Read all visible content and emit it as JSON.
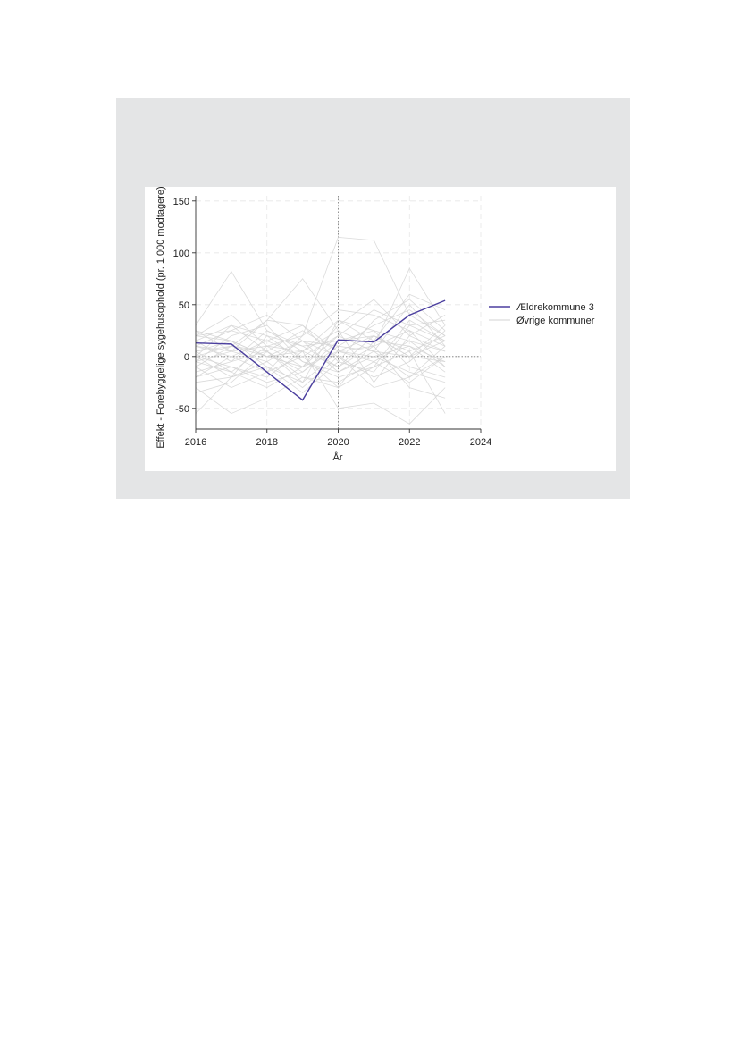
{
  "chart_data": {
    "type": "line",
    "title": "",
    "xlabel": "År",
    "ylabel": "Effekt - Forebyggelige sygehusophold (pr. 1.000 modtagere)",
    "xlim": [
      2016,
      2024
    ],
    "ylim": [
      -70,
      155
    ],
    "x_ticks": [
      2016,
      2018,
      2020,
      2022,
      2024
    ],
    "y_ticks": [
      150,
      100,
      50,
      0,
      -50
    ],
    "grid": true,
    "reference_lines": {
      "x": 2020,
      "y": 0
    },
    "legend_position": "right",
    "x": [
      2016,
      2017,
      2018,
      2019,
      2020,
      2021,
      2022,
      2023
    ],
    "highlight": {
      "name": "Ældrekommune 3",
      "color": "#4b3f9f",
      "values": [
        13,
        12,
        -15,
        -42,
        16,
        14,
        40,
        54
      ]
    },
    "others": {
      "name": "Øvrige kommuner",
      "color": "#d3d3d3",
      "series": [
        [
          30,
          82,
          25,
          5,
          -10,
          20,
          0,
          15
        ],
        [
          5,
          10,
          35,
          75,
          25,
          10,
          85,
          30
        ],
        [
          -5,
          5,
          10,
          20,
          115,
          112,
          40,
          20
        ],
        [
          0,
          -10,
          -20,
          5,
          -50,
          -45,
          -65,
          -30
        ],
        [
          -55,
          -20,
          -10,
          -25,
          5,
          10,
          25,
          -10
        ],
        [
          -30,
          -55,
          -40,
          -20,
          -30,
          -10,
          5,
          -55
        ],
        [
          20,
          15,
          0,
          -10,
          30,
          55,
          20,
          40
        ],
        [
          10,
          25,
          40,
          15,
          0,
          -20,
          -5,
          25
        ],
        [
          -10,
          -30,
          -15,
          0,
          20,
          5,
          -20,
          10
        ],
        [
          25,
          5,
          -5,
          15,
          10,
          30,
          45,
          20
        ],
        [
          15,
          30,
          20,
          -5,
          -15,
          0,
          10,
          -15
        ],
        [
          -20,
          0,
          15,
          30,
          -5,
          -15,
          30,
          35
        ],
        [
          5,
          -15,
          -30,
          -10,
          5,
          20,
          0,
          -5
        ],
        [
          0,
          10,
          5,
          -20,
          -25,
          -5,
          15,
          5
        ],
        [
          -15,
          -5,
          25,
          10,
          15,
          25,
          -10,
          -20
        ],
        [
          20,
          40,
          10,
          5,
          35,
          15,
          60,
          45
        ],
        [
          -25,
          -20,
          -5,
          -30,
          0,
          -30,
          -20,
          0
        ],
        [
          10,
          0,
          -15,
          20,
          45,
          40,
          25,
          10
        ],
        [
          -5,
          20,
          30,
          -5,
          -20,
          -10,
          35,
          15
        ],
        [
          15,
          -5,
          5,
          25,
          5,
          0,
          -15,
          -25
        ],
        [
          -35,
          -25,
          5,
          -15,
          10,
          5,
          0,
          30
        ],
        [
          5,
          15,
          -10,
          -35,
          -5,
          35,
          55,
          25
        ],
        [
          0,
          -20,
          20,
          10,
          -10,
          10,
          -30,
          -40
        ],
        [
          -10,
          10,
          0,
          5,
          25,
          -25,
          20,
          5
        ],
        [
          20,
          25,
          15,
          0,
          -30,
          15,
          10,
          -5
        ],
        [
          -20,
          -10,
          -25,
          -15,
          15,
          20,
          5,
          20
        ],
        [
          10,
          5,
          35,
          30,
          5,
          -5,
          -25,
          0
        ],
        [
          -5,
          -15,
          10,
          -10,
          20,
          45,
          30,
          15
        ],
        [
          25,
          15,
          0,
          15,
          -15,
          5,
          50,
          10
        ],
        [
          0,
          30,
          5,
          -25,
          35,
          25,
          15,
          -10
        ]
      ]
    }
  }
}
